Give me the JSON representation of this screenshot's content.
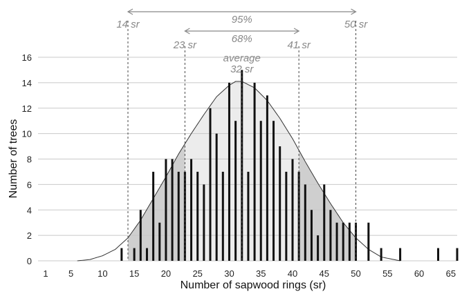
{
  "chart_data": {
    "type": "bar",
    "xlabel": "Number of sapwood rings (sr)",
    "ylabel": "Number of trees",
    "xlim": [
      1,
      66
    ],
    "ylim": [
      0,
      16
    ],
    "x_ticks": [
      "1",
      "5",
      "10",
      "15",
      "20",
      "25",
      "30",
      "35",
      "40",
      "45",
      "50",
      "55",
      "60",
      "65"
    ],
    "y_ticks": [
      "0",
      "2",
      "4",
      "6",
      "8",
      "10",
      "12",
      "14",
      "16"
    ],
    "grid": "horizontal",
    "x": [
      13,
      15,
      16,
      17,
      18,
      19,
      20,
      21,
      22,
      23,
      24,
      25,
      26,
      27,
      28,
      29,
      30,
      31,
      32,
      33,
      34,
      35,
      36,
      37,
      38,
      39,
      40,
      41,
      42,
      43,
      44,
      45,
      46,
      47,
      48,
      49,
      50,
      52,
      54,
      57,
      63,
      66
    ],
    "values": [
      1,
      1,
      4,
      1,
      7,
      3,
      8,
      8,
      7,
      7,
      8,
      7,
      6,
      12,
      10,
      7,
      14,
      11,
      15,
      7,
      14,
      11,
      13,
      11,
      9,
      7,
      8,
      7,
      6,
      4,
      2,
      6,
      4,
      3,
      3,
      3,
      3,
      3,
      1,
      1,
      1,
      1
    ],
    "distribution_curve": {
      "x": [
        6,
        8,
        10,
        12,
        14,
        16,
        18,
        20,
        22,
        24,
        26,
        28,
        30,
        31,
        32,
        34,
        36,
        38,
        40,
        42,
        44,
        46,
        48,
        50,
        52,
        54,
        56,
        57
      ],
      "y": [
        0,
        0.1,
        0.4,
        0.9,
        1.8,
        3.2,
        4.9,
        6.6,
        8.4,
        10.0,
        11.5,
        12.9,
        13.8,
        14.1,
        14.1,
        13.6,
        12.6,
        11.2,
        9.6,
        7.8,
        6.1,
        4.5,
        3.0,
        1.8,
        0.9,
        0.3,
        0.1,
        0
      ]
    },
    "annotations": {
      "range_95": {
        "label": "95%",
        "from": 14,
        "to": 50,
        "from_label": "14 sr",
        "to_label": "50 sr"
      },
      "range_68": {
        "label": "68%",
        "from": 23,
        "to": 41,
        "from_label": "23 sr",
        "to_label": "41 sr"
      },
      "average": {
        "label": "average",
        "value": 32,
        "value_label": "32 sr"
      }
    },
    "colors": {
      "bars": "#111111",
      "shade_95": "#cfcfcf",
      "shade_68": "#ececec",
      "curve": "#333333",
      "annotation": "#888888",
      "grid": "#c8c8c8"
    }
  }
}
